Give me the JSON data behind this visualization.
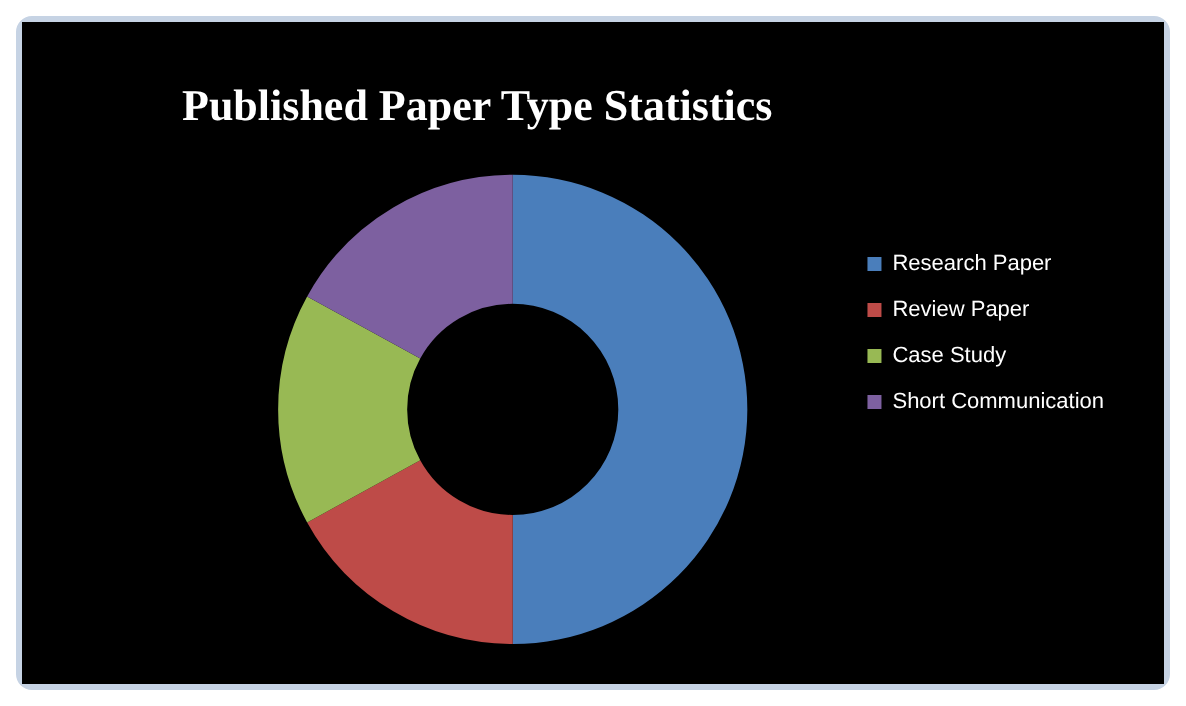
{
  "chart_data": {
    "type": "donut",
    "title": "Published Paper Type Statistics",
    "categories": [
      "Research Paper",
      "Review Paper",
      "Case Study",
      "Short Communication"
    ],
    "values": [
      50,
      17,
      16,
      17
    ],
    "colors": [
      "#4a7ebb",
      "#be4b48",
      "#98b954",
      "#7d60a0"
    ],
    "legend": "right"
  }
}
